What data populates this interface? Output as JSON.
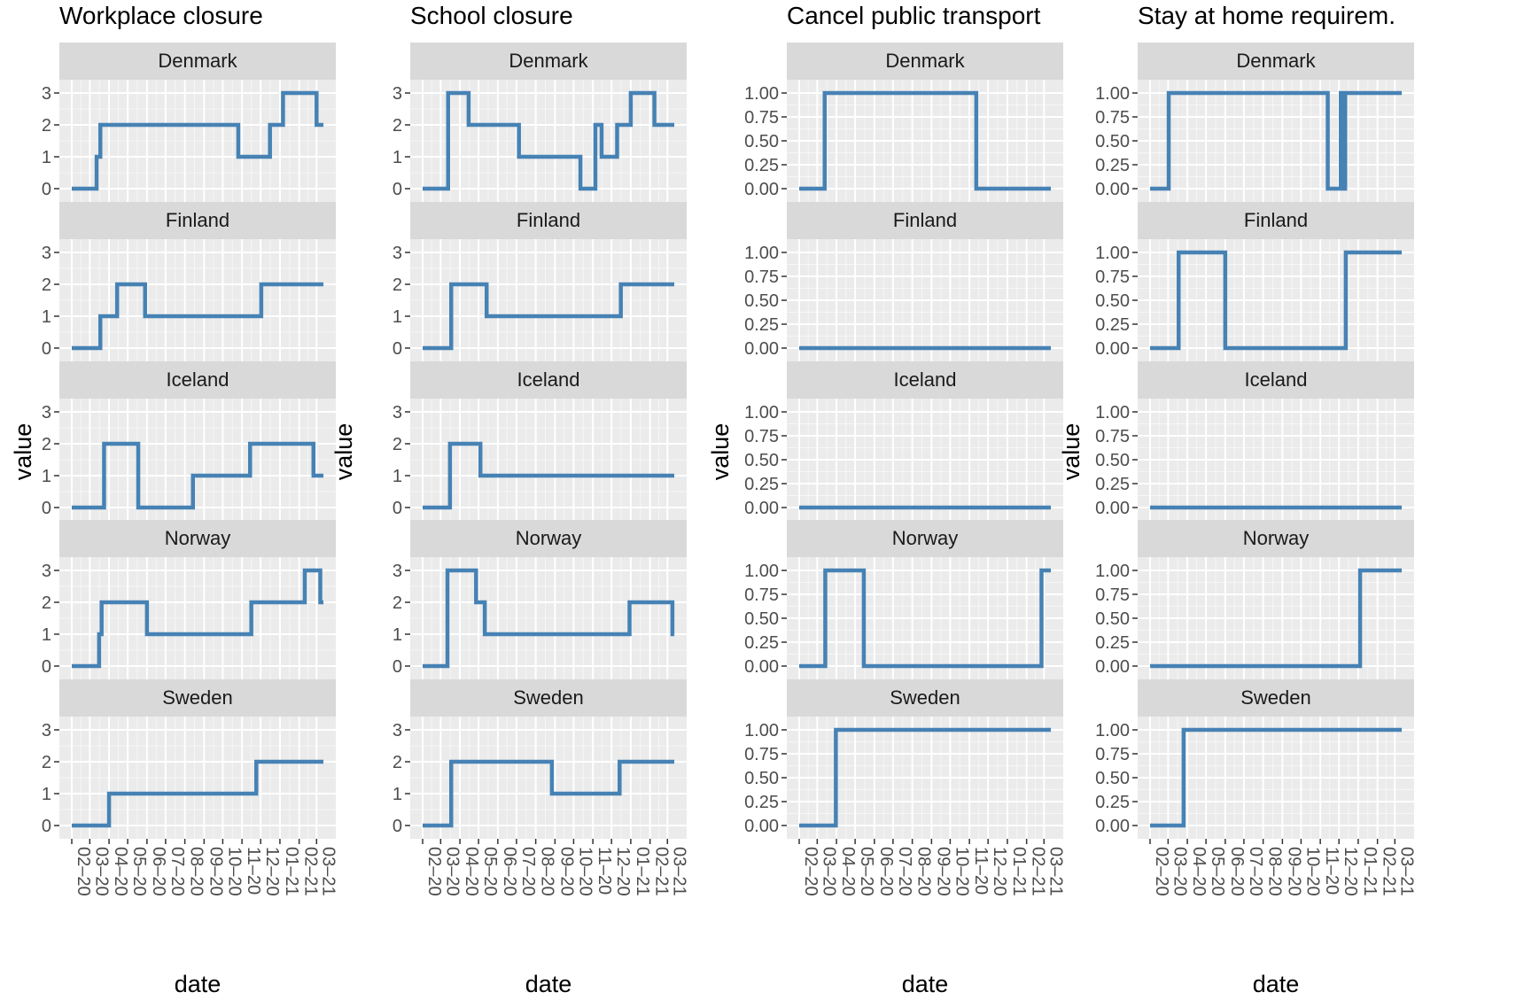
{
  "colors": {
    "panel_background": "#ebebeb",
    "strip_background": "#d9d9d9",
    "grid_major": "#ffffff",
    "line": "#4682b4"
  },
  "x_tick_labels": [
    "02–20",
    "03–20",
    "04–20",
    "05–20",
    "06–20",
    "07–20",
    "08–20",
    "09–20",
    "10–20",
    "11–20",
    "12–20",
    "01–21",
    "02–21",
    "03–21"
  ],
  "chart_data": [
    {
      "type": "line",
      "title": "Workplace closure",
      "xlabel": "date",
      "ylabel": "value",
      "ylim": [
        0,
        3
      ],
      "y_ticks": [
        "0",
        "1",
        "2",
        "3"
      ],
      "facets": [
        "Denmark",
        "Finland",
        "Iceland",
        "Norway",
        "Sweden"
      ],
      "series": [
        {
          "facet": "Denmark",
          "points": [
            [
              "2020-02-01",
              0
            ],
            [
              "2020-03-12",
              0
            ],
            [
              "2020-03-12",
              1
            ],
            [
              "2020-03-18",
              1
            ],
            [
              "2020-03-18",
              2
            ],
            [
              "2020-10-26",
              2
            ],
            [
              "2020-10-26",
              1
            ],
            [
              "2020-12-16",
              1
            ],
            [
              "2020-12-16",
              2
            ],
            [
              "2021-01-06",
              2
            ],
            [
              "2021-01-06",
              3
            ],
            [
              "2021-03-01",
              3
            ],
            [
              "2021-03-01",
              2
            ],
            [
              "2021-03-12",
              2
            ]
          ]
        },
        {
          "facet": "Finland",
          "points": [
            [
              "2020-02-01",
              0
            ],
            [
              "2020-03-18",
              0
            ],
            [
              "2020-03-18",
              1
            ],
            [
              "2020-04-14",
              1
            ],
            [
              "2020-04-14",
              2
            ],
            [
              "2020-05-29",
              2
            ],
            [
              "2020-05-29",
              1
            ],
            [
              "2020-12-02",
              1
            ],
            [
              "2020-12-02",
              2
            ],
            [
              "2021-03-12",
              2
            ]
          ]
        },
        {
          "facet": "Iceland",
          "points": [
            [
              "2020-02-01",
              0
            ],
            [
              "2020-03-24",
              0
            ],
            [
              "2020-03-24",
              2
            ],
            [
              "2020-05-18",
              2
            ],
            [
              "2020-05-18",
              0
            ],
            [
              "2020-08-14",
              0
            ],
            [
              "2020-08-14",
              1
            ],
            [
              "2020-11-14",
              1
            ],
            [
              "2020-11-14",
              2
            ],
            [
              "2021-02-24",
              2
            ],
            [
              "2021-02-24",
              1
            ],
            [
              "2021-03-12",
              1
            ]
          ]
        },
        {
          "facet": "Norway",
          "points": [
            [
              "2020-02-01",
              0
            ],
            [
              "2020-03-16",
              0
            ],
            [
              "2020-03-16",
              1
            ],
            [
              "2020-03-20",
              1
            ],
            [
              "2020-03-20",
              2
            ],
            [
              "2020-06-01",
              2
            ],
            [
              "2020-06-01",
              1
            ],
            [
              "2020-11-16",
              1
            ],
            [
              "2020-11-16",
              2
            ],
            [
              "2021-02-10",
              2
            ],
            [
              "2021-02-10",
              3
            ],
            [
              "2021-03-07",
              3
            ],
            [
              "2021-03-07",
              2
            ],
            [
              "2021-03-12",
              2
            ]
          ]
        },
        {
          "facet": "Sweden",
          "points": [
            [
              "2020-02-01",
              0
            ],
            [
              "2020-04-01",
              0
            ],
            [
              "2020-04-01",
              1
            ],
            [
              "2020-11-24",
              1
            ],
            [
              "2020-11-24",
              2
            ],
            [
              "2021-03-12",
              2
            ]
          ]
        }
      ]
    },
    {
      "type": "line",
      "title": "School closure",
      "xlabel": "date",
      "ylabel": "value",
      "ylim": [
        0,
        3
      ],
      "y_ticks": [
        "0",
        "1",
        "2",
        "3"
      ],
      "facets": [
        "Denmark",
        "Finland",
        "Iceland",
        "Norway",
        "Sweden"
      ],
      "series": [
        {
          "facet": "Denmark",
          "points": [
            [
              "2020-02-01",
              0
            ],
            [
              "2020-03-13",
              0
            ],
            [
              "2020-03-13",
              3
            ],
            [
              "2020-04-15",
              3
            ],
            [
              "2020-04-15",
              2
            ],
            [
              "2020-07-05",
              2
            ],
            [
              "2020-07-05",
              1
            ],
            [
              "2020-10-12",
              1
            ],
            [
              "2020-10-12",
              0
            ],
            [
              "2020-11-05",
              0
            ],
            [
              "2020-11-05",
              2
            ],
            [
              "2020-11-15",
              2
            ],
            [
              "2020-11-15",
              1
            ],
            [
              "2020-12-10",
              1
            ],
            [
              "2020-12-10",
              2
            ],
            [
              "2021-01-01",
              2
            ],
            [
              "2021-01-01",
              3
            ],
            [
              "2021-02-08",
              3
            ],
            [
              "2021-02-08",
              2
            ],
            [
              "2021-03-12",
              2
            ]
          ]
        },
        {
          "facet": "Finland",
          "points": [
            [
              "2020-02-01",
              0
            ],
            [
              "2020-03-18",
              0
            ],
            [
              "2020-03-18",
              2
            ],
            [
              "2020-05-14",
              2
            ],
            [
              "2020-05-14",
              1
            ],
            [
              "2020-12-16",
              1
            ],
            [
              "2020-12-16",
              2
            ],
            [
              "2021-03-12",
              2
            ]
          ]
        },
        {
          "facet": "Iceland",
          "points": [
            [
              "2020-02-01",
              0
            ],
            [
              "2020-03-16",
              0
            ],
            [
              "2020-03-16",
              2
            ],
            [
              "2020-05-04",
              2
            ],
            [
              "2020-05-04",
              1
            ],
            [
              "2021-03-12",
              1
            ]
          ]
        },
        {
          "facet": "Norway",
          "points": [
            [
              "2020-02-01",
              0
            ],
            [
              "2020-03-12",
              0
            ],
            [
              "2020-03-12",
              3
            ],
            [
              "2020-04-27",
              3
            ],
            [
              "2020-04-27",
              2
            ],
            [
              "2020-05-11",
              2
            ],
            [
              "2020-05-11",
              1
            ],
            [
              "2020-12-30",
              1
            ],
            [
              "2020-12-30",
              2
            ],
            [
              "2021-03-09",
              2
            ],
            [
              "2021-03-09",
              1
            ],
            [
              "2021-03-12",
              1
            ]
          ]
        },
        {
          "facet": "Sweden",
          "points": [
            [
              "2020-02-01",
              0
            ],
            [
              "2020-03-18",
              0
            ],
            [
              "2020-03-18",
              2
            ],
            [
              "2020-08-27",
              2
            ],
            [
              "2020-08-27",
              1
            ],
            [
              "2020-12-14",
              1
            ],
            [
              "2020-12-14",
              2
            ],
            [
              "2021-03-12",
              2
            ]
          ]
        }
      ]
    },
    {
      "type": "line",
      "title": "Cancel public transport",
      "xlabel": "date",
      "ylabel": "value",
      "ylim": [
        0,
        1
      ],
      "y_ticks": [
        "0.00",
        "0.25",
        "0.50",
        "0.75",
        "1.00"
      ],
      "facets": [
        "Denmark",
        "Finland",
        "Iceland",
        "Norway",
        "Sweden"
      ],
      "series": [
        {
          "facet": "Denmark",
          "points": [
            [
              "2020-02-01",
              0
            ],
            [
              "2020-03-13",
              0
            ],
            [
              "2020-03-13",
              1
            ],
            [
              "2020-11-12",
              1
            ],
            [
              "2020-11-12",
              0
            ],
            [
              "2021-03-12",
              0
            ]
          ]
        },
        {
          "facet": "Finland",
          "points": [
            [
              "2020-02-01",
              0
            ],
            [
              "2021-03-12",
              0
            ]
          ]
        },
        {
          "facet": "Iceland",
          "points": [
            [
              "2020-02-01",
              0
            ],
            [
              "2021-03-12",
              0
            ]
          ]
        },
        {
          "facet": "Norway",
          "points": [
            [
              "2020-02-01",
              0
            ],
            [
              "2020-03-14",
              0
            ],
            [
              "2020-03-14",
              1
            ],
            [
              "2020-05-15",
              1
            ],
            [
              "2020-05-15",
              0
            ],
            [
              "2021-02-25",
              0
            ],
            [
              "2021-02-25",
              1
            ],
            [
              "2021-03-12",
              1
            ]
          ]
        },
        {
          "facet": "Sweden",
          "points": [
            [
              "2020-02-01",
              0
            ],
            [
              "2020-03-31",
              0
            ],
            [
              "2020-03-31",
              1
            ],
            [
              "2021-03-12",
              1
            ]
          ]
        }
      ]
    },
    {
      "type": "line",
      "title": "Stay at home requirem.",
      "xlabel": "date",
      "ylabel": "value",
      "ylim": [
        0,
        1
      ],
      "y_ticks": [
        "0.00",
        "0.25",
        "0.50",
        "0.75",
        "1.00"
      ],
      "facets": [
        "Denmark",
        "Finland",
        "Iceland",
        "Norway",
        "Sweden"
      ],
      "series": [
        {
          "facet": "Denmark",
          "points": [
            [
              "2020-02-01",
              0
            ],
            [
              "2020-03-02",
              0
            ],
            [
              "2020-03-02",
              1
            ],
            [
              "2020-11-13",
              1
            ],
            [
              "2020-11-13",
              0
            ],
            [
              "2020-12-04",
              0
            ],
            [
              "2020-12-04",
              1
            ],
            [
              "2020-12-08",
              1
            ],
            [
              "2020-12-08",
              0
            ],
            [
              "2020-12-11",
              0
            ],
            [
              "2020-12-11",
              1
            ],
            [
              "2021-03-12",
              1
            ]
          ]
        },
        {
          "facet": "Finland",
          "points": [
            [
              "2020-02-01",
              0
            ],
            [
              "2020-03-18",
              0
            ],
            [
              "2020-03-18",
              1
            ],
            [
              "2020-06-01",
              1
            ],
            [
              "2020-06-01",
              0
            ],
            [
              "2020-12-12",
              0
            ],
            [
              "2020-12-12",
              1
            ],
            [
              "2021-03-12",
              1
            ]
          ]
        },
        {
          "facet": "Iceland",
          "points": [
            [
              "2020-02-01",
              0
            ],
            [
              "2021-03-12",
              0
            ]
          ]
        },
        {
          "facet": "Norway",
          "points": [
            [
              "2020-02-01",
              0
            ],
            [
              "2021-01-04",
              0
            ],
            [
              "2021-01-04",
              1
            ],
            [
              "2021-03-12",
              1
            ]
          ]
        },
        {
          "facet": "Sweden",
          "points": [
            [
              "2020-02-01",
              0
            ],
            [
              "2020-03-26",
              0
            ],
            [
              "2020-03-26",
              1
            ],
            [
              "2021-03-12",
              1
            ]
          ]
        }
      ]
    }
  ]
}
